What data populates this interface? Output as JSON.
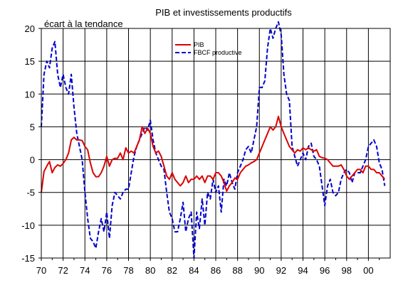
{
  "chart_data": {
    "type": "line",
    "title": "PIB et investissements productifs",
    "ylabel": "écart à la tendance",
    "xlabel": "",
    "xlim": [
      1970,
      2002
    ],
    "ylim": [
      -15,
      20
    ],
    "yticks": [
      20,
      15,
      10,
      5,
      0,
      -5,
      -10,
      -15
    ],
    "xtick_labels": [
      "70",
      "72",
      "74",
      "76",
      "78",
      "80",
      "82",
      "84",
      "86",
      "88",
      "90",
      "92",
      "94",
      "96",
      "98",
      "00"
    ],
    "grid": true,
    "legend_position": "top-center",
    "series": [
      {
        "name": "PIB",
        "color": "#dd0000",
        "style": "solid",
        "points": [
          [
            1970.0,
            -5.0
          ],
          [
            1970.25,
            -1.8
          ],
          [
            1970.5,
            -1.0
          ],
          [
            1970.75,
            -0.3
          ],
          [
            1971.0,
            -2.0
          ],
          [
            1971.25,
            -1.2
          ],
          [
            1971.5,
            -0.8
          ],
          [
            1971.75,
            -1.0
          ],
          [
            1972.0,
            -0.6
          ],
          [
            1972.25,
            0.0
          ],
          [
            1972.5,
            1.0
          ],
          [
            1972.75,
            3.0
          ],
          [
            1973.0,
            3.4
          ],
          [
            1973.25,
            3.0
          ],
          [
            1973.5,
            3.0
          ],
          [
            1973.75,
            2.9
          ],
          [
            1974.0,
            2.0
          ],
          [
            1974.25,
            1.5
          ],
          [
            1974.5,
            -0.5
          ],
          [
            1974.75,
            -2.0
          ],
          [
            1975.0,
            -2.6
          ],
          [
            1975.25,
            -2.6
          ],
          [
            1975.5,
            -2.0
          ],
          [
            1975.75,
            -1.0
          ],
          [
            1976.0,
            0.5
          ],
          [
            1976.25,
            -1.0
          ],
          [
            1976.5,
            0.0
          ],
          [
            1976.75,
            0.2
          ],
          [
            1977.0,
            0.2
          ],
          [
            1977.25,
            1.0
          ],
          [
            1977.5,
            0.0
          ],
          [
            1977.75,
            1.8
          ],
          [
            1978.0,
            1.0
          ],
          [
            1978.25,
            1.3
          ],
          [
            1978.5,
            1.0
          ],
          [
            1978.75,
            2.0
          ],
          [
            1979.0,
            3.0
          ],
          [
            1979.25,
            5.0
          ],
          [
            1979.5,
            4.0
          ],
          [
            1979.75,
            4.8
          ],
          [
            1980.0,
            4.0
          ],
          [
            1980.25,
            2.0
          ],
          [
            1980.5,
            1.0
          ],
          [
            1980.75,
            1.3
          ],
          [
            1981.0,
            0.5
          ],
          [
            1981.25,
            -1.0
          ],
          [
            1981.5,
            -2.5
          ],
          [
            1981.75,
            -3.0
          ],
          [
            1982.0,
            -2.0
          ],
          [
            1982.25,
            -3.0
          ],
          [
            1982.5,
            -3.5
          ],
          [
            1982.75,
            -4.0
          ],
          [
            1983.0,
            -3.5
          ],
          [
            1983.25,
            -2.5
          ],
          [
            1983.5,
            -3.5
          ],
          [
            1983.75,
            -3.0
          ],
          [
            1984.0,
            -3.0
          ],
          [
            1984.25,
            -2.5
          ],
          [
            1984.5,
            -3.0
          ],
          [
            1984.75,
            -2.5
          ],
          [
            1985.0,
            -3.5
          ],
          [
            1985.25,
            -2.5
          ],
          [
            1985.5,
            -2.5
          ],
          [
            1985.75,
            -3.0
          ],
          [
            1986.0,
            -2.0
          ],
          [
            1986.25,
            -2.0
          ],
          [
            1986.5,
            -2.5
          ],
          [
            1986.75,
            -3.5
          ],
          [
            1987.0,
            -4.8
          ],
          [
            1987.25,
            -4.0
          ],
          [
            1987.5,
            -3.5
          ],
          [
            1987.75,
            -2.8
          ],
          [
            1988.0,
            -3.0
          ],
          [
            1988.25,
            -2.0
          ],
          [
            1988.5,
            -1.5
          ],
          [
            1988.75,
            -1.0
          ],
          [
            1989.0,
            -0.8
          ],
          [
            1989.25,
            -0.5
          ],
          [
            1989.5,
            -0.3
          ],
          [
            1989.75,
            0.0
          ],
          [
            1990.0,
            1.0
          ],
          [
            1990.25,
            2.0
          ],
          [
            1990.5,
            3.0
          ],
          [
            1990.75,
            4.0
          ],
          [
            1991.0,
            5.0
          ],
          [
            1991.25,
            4.5
          ],
          [
            1991.5,
            5.0
          ],
          [
            1991.75,
            6.6
          ],
          [
            1992.0,
            5.0
          ],
          [
            1992.25,
            4.0
          ],
          [
            1992.5,
            3.0
          ],
          [
            1992.75,
            2.0
          ],
          [
            1993.0,
            1.5
          ],
          [
            1993.25,
            1.0
          ],
          [
            1993.5,
            1.5
          ],
          [
            1993.75,
            1.3
          ],
          [
            1994.0,
            1.8
          ],
          [
            1994.25,
            1.5
          ],
          [
            1994.5,
            1.8
          ],
          [
            1994.75,
            1.5
          ],
          [
            1995.0,
            1.3
          ],
          [
            1995.25,
            1.5
          ],
          [
            1995.5,
            0.5
          ],
          [
            1995.75,
            0.3
          ],
          [
            1996.0,
            0.2
          ],
          [
            1996.25,
            0.0
          ],
          [
            1996.5,
            -0.5
          ],
          [
            1996.75,
            -1.0
          ],
          [
            1997.0,
            -1.0
          ],
          [
            1997.25,
            -1.0
          ],
          [
            1997.5,
            -0.8
          ],
          [
            1997.75,
            -1.5
          ],
          [
            1998.0,
            -2.5
          ],
          [
            1998.25,
            -3.0
          ],
          [
            1998.5,
            -2.5
          ],
          [
            1998.75,
            -2.0
          ],
          [
            1999.0,
            -1.5
          ],
          [
            1999.25,
            -1.5
          ],
          [
            1999.5,
            -2.0
          ],
          [
            1999.75,
            -1.0
          ],
          [
            2000.0,
            -1.0
          ],
          [
            2000.25,
            -1.5
          ],
          [
            2000.5,
            -1.5
          ],
          [
            2000.75,
            -2.0
          ],
          [
            2001.0,
            -2.0
          ],
          [
            2001.25,
            -2.5
          ],
          [
            2001.5,
            -3.0
          ]
        ]
      },
      {
        "name": "FBCF productive",
        "color": "#0000cc",
        "style": "dashed",
        "points": [
          [
            1970.0,
            5.0
          ],
          [
            1970.25,
            13.0
          ],
          [
            1970.5,
            15.0
          ],
          [
            1970.75,
            14.0
          ],
          [
            1971.0,
            17.0
          ],
          [
            1971.25,
            18.0
          ],
          [
            1971.5,
            13.0
          ],
          [
            1971.75,
            11.0
          ],
          [
            1972.0,
            13.0
          ],
          [
            1972.25,
            11.0
          ],
          [
            1972.5,
            10.0
          ],
          [
            1972.75,
            13.0
          ],
          [
            1973.0,
            8.0
          ],
          [
            1973.25,
            4.0
          ],
          [
            1973.5,
            2.0
          ],
          [
            1973.75,
            0.0
          ],
          [
            1974.0,
            -5.0
          ],
          [
            1974.25,
            -9.0
          ],
          [
            1974.5,
            -12.0
          ],
          [
            1974.75,
            -12.5
          ],
          [
            1975.0,
            -13.5
          ],
          [
            1975.25,
            -11.0
          ],
          [
            1975.5,
            -9.0
          ],
          [
            1975.75,
            -11.0
          ],
          [
            1976.0,
            -8.0
          ],
          [
            1976.25,
            -12.0
          ],
          [
            1976.5,
            -7.0
          ],
          [
            1976.75,
            -5.0
          ],
          [
            1977.0,
            -5.5
          ],
          [
            1977.25,
            -6.0
          ],
          [
            1977.5,
            -5.0
          ],
          [
            1977.75,
            -4.5
          ],
          [
            1978.0,
            -4.5
          ],
          [
            1978.25,
            -2.0
          ],
          [
            1978.5,
            0.5
          ],
          [
            1978.75,
            2.0
          ],
          [
            1979.0,
            3.0
          ],
          [
            1979.25,
            4.0
          ],
          [
            1979.5,
            5.0
          ],
          [
            1979.75,
            4.5
          ],
          [
            1980.0,
            6.0
          ],
          [
            1980.25,
            3.0
          ],
          [
            1980.5,
            1.0
          ],
          [
            1980.75,
            0.0
          ],
          [
            1981.0,
            -1.0
          ],
          [
            1981.25,
            -1.5
          ],
          [
            1981.5,
            -5.0
          ],
          [
            1981.75,
            -8.0
          ],
          [
            1982.0,
            -9.0
          ],
          [
            1982.25,
            -11.0
          ],
          [
            1982.5,
            -11.0
          ],
          [
            1982.75,
            -9.0
          ],
          [
            1983.0,
            -6.5
          ],
          [
            1983.25,
            -11.0
          ],
          [
            1983.5,
            -9.0
          ],
          [
            1983.75,
            -8.0
          ],
          [
            1984.0,
            -15.0
          ],
          [
            1984.25,
            -8.0
          ],
          [
            1984.5,
            -10.5
          ],
          [
            1984.75,
            -6.0
          ],
          [
            1985.0,
            -10.0
          ],
          [
            1985.25,
            -5.0
          ],
          [
            1985.5,
            -6.0
          ],
          [
            1985.75,
            -3.0
          ],
          [
            1986.0,
            -5.0
          ],
          [
            1986.25,
            -4.0
          ],
          [
            1986.5,
            -8.0
          ],
          [
            1986.75,
            -3.0
          ],
          [
            1987.0,
            -4.0
          ],
          [
            1987.25,
            -2.0
          ],
          [
            1987.5,
            -3.5
          ],
          [
            1987.75,
            -4.5
          ],
          [
            1988.0,
            -2.0
          ],
          [
            1988.25,
            -1.0
          ],
          [
            1988.5,
            0.0
          ],
          [
            1988.75,
            1.5
          ],
          [
            1989.0,
            2.0
          ],
          [
            1989.25,
            1.0
          ],
          [
            1989.5,
            3.0
          ],
          [
            1989.75,
            5.0
          ],
          [
            1990.0,
            11.0
          ],
          [
            1990.25,
            11.0
          ],
          [
            1990.5,
            12.0
          ],
          [
            1990.75,
            17.0
          ],
          [
            1991.0,
            20.0
          ],
          [
            1991.25,
            18.5
          ],
          [
            1991.5,
            20.0
          ],
          [
            1991.75,
            21.0
          ],
          [
            1992.0,
            19.0
          ],
          [
            1992.25,
            13.0
          ],
          [
            1992.5,
            10.0
          ],
          [
            1992.75,
            9.0
          ],
          [
            1993.0,
            2.0
          ],
          [
            1993.25,
            0.5
          ],
          [
            1993.5,
            -1.0
          ],
          [
            1993.75,
            0.0
          ],
          [
            1994.0,
            1.0
          ],
          [
            1994.25,
            0.0
          ],
          [
            1994.5,
            2.0
          ],
          [
            1994.75,
            2.5
          ],
          [
            1995.0,
            0.5
          ],
          [
            1995.25,
            0.0
          ],
          [
            1995.5,
            -1.0
          ],
          [
            1995.75,
            -4.0
          ],
          [
            1996.0,
            -7.0
          ],
          [
            1996.25,
            -4.0
          ],
          [
            1996.5,
            -3.0
          ],
          [
            1996.75,
            -5.0
          ],
          [
            1997.0,
            -5.5
          ],
          [
            1997.25,
            -5.0
          ],
          [
            1997.5,
            -3.0
          ],
          [
            1997.75,
            -2.0
          ],
          [
            1998.0,
            -1.5
          ],
          [
            1998.25,
            -2.0
          ],
          [
            1998.5,
            -3.5
          ],
          [
            1998.75,
            -2.0
          ],
          [
            1999.0,
            -2.0
          ],
          [
            1999.25,
            -2.0
          ],
          [
            1999.5,
            -1.0
          ],
          [
            1999.75,
            0.0
          ],
          [
            2000.0,
            2.0
          ],
          [
            2000.25,
            2.5
          ],
          [
            2000.5,
            3.0
          ],
          [
            2000.75,
            2.0
          ],
          [
            2001.0,
            -0.5
          ],
          [
            2001.25,
            -1.5
          ],
          [
            2001.5,
            -4.0
          ]
        ]
      }
    ]
  }
}
